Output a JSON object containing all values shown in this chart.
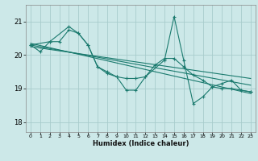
{
  "title": "",
  "xlabel": "Humidex (Indice chaleur)",
  "bg_color": "#cce8e8",
  "grid_color": "#a8cccc",
  "line_color": "#1a7a6e",
  "xlim": [
    -0.5,
    23.5
  ],
  "ylim": [
    17.7,
    21.5
  ],
  "yticks": [
    18,
    19,
    20,
    21
  ],
  "xticks": [
    0,
    1,
    2,
    3,
    4,
    5,
    6,
    7,
    8,
    9,
    10,
    11,
    12,
    13,
    14,
    15,
    16,
    17,
    18,
    19,
    20,
    21,
    22,
    23
  ],
  "lines": [
    {
      "x": [
        0,
        1,
        2,
        3,
        4,
        5,
        6,
        7,
        8,
        9,
        10,
        11,
        12,
        13,
        14,
        15,
        16,
        17,
        18,
        19,
        20,
        21,
        22,
        23
      ],
      "y": [
        20.3,
        20.1,
        20.4,
        20.4,
        20.75,
        20.65,
        20.3,
        19.65,
        19.5,
        19.35,
        19.3,
        19.3,
        19.35,
        19.7,
        19.9,
        19.9,
        19.65,
        19.4,
        19.25,
        19.05,
        19.0,
        19.0,
        18.95,
        18.9
      ],
      "has_markers": true
    },
    {
      "x": [
        0,
        2,
        4,
        5,
        6,
        7,
        8,
        9,
        10,
        11,
        12,
        14,
        15,
        16,
        17,
        18,
        19,
        20,
        21,
        22,
        23
      ],
      "y": [
        20.3,
        20.4,
        20.85,
        20.65,
        20.3,
        19.65,
        19.45,
        19.35,
        18.95,
        18.95,
        19.35,
        19.85,
        21.15,
        19.85,
        18.55,
        18.75,
        19.05,
        19.15,
        19.25,
        18.95,
        18.9
      ],
      "has_markers": true
    },
    {
      "x": [
        0,
        23
      ],
      "y": [
        20.35,
        18.85
      ],
      "has_markers": false
    },
    {
      "x": [
        0,
        23
      ],
      "y": [
        20.3,
        19.1
      ],
      "has_markers": false
    },
    {
      "x": [
        0,
        23
      ],
      "y": [
        20.25,
        19.3
      ],
      "has_markers": false
    }
  ]
}
